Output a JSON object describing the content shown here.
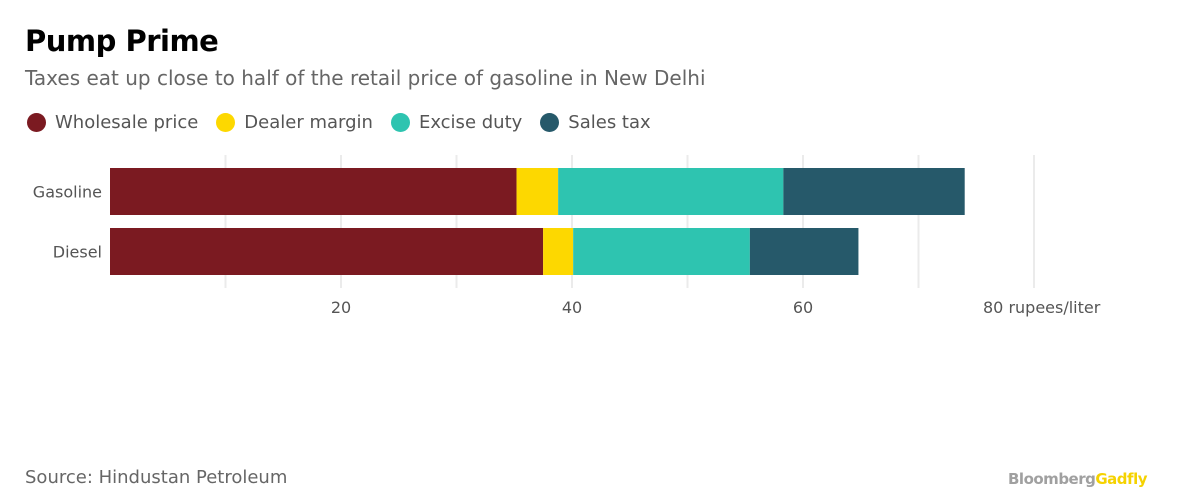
{
  "chart_data": {
    "type": "bar",
    "orientation": "horizontal",
    "stacked": true,
    "title": "Pump Prime",
    "subtitle": "Taxes eat up close to half of the retail price of gasoline in New Delhi",
    "categories": [
      "Gasoline",
      "Diesel"
    ],
    "series": [
      {
        "name": "Wholesale price",
        "color": "#7b1a21",
        "values": [
          35.2,
          37.5
        ]
      },
      {
        "name": "Dealer margin",
        "color": "#fdd800",
        "values": [
          3.6,
          2.6
        ]
      },
      {
        "name": "Excise duty",
        "color": "#2ec4b0",
        "values": [
          19.5,
          15.3
        ]
      },
      {
        "name": "Sales tax",
        "color": "#26596a",
        "values": [
          15.7,
          9.4
        ]
      }
    ],
    "xlim": [
      0,
      80
    ],
    "gridlines": [
      10,
      20,
      30,
      40,
      50,
      60,
      70,
      80
    ],
    "ticks": [
      {
        "value": 20,
        "label": "20"
      },
      {
        "value": 40,
        "label": "40"
      },
      {
        "value": 60,
        "label": "60"
      },
      {
        "value": 80,
        "label": "80 rupees/liter"
      }
    ],
    "grid": true,
    "legend": "top-left",
    "source": "Source: Hindustan Petroleum"
  },
  "brand": {
    "part1": "Bloomberg",
    "part2": "Gadfly"
  }
}
